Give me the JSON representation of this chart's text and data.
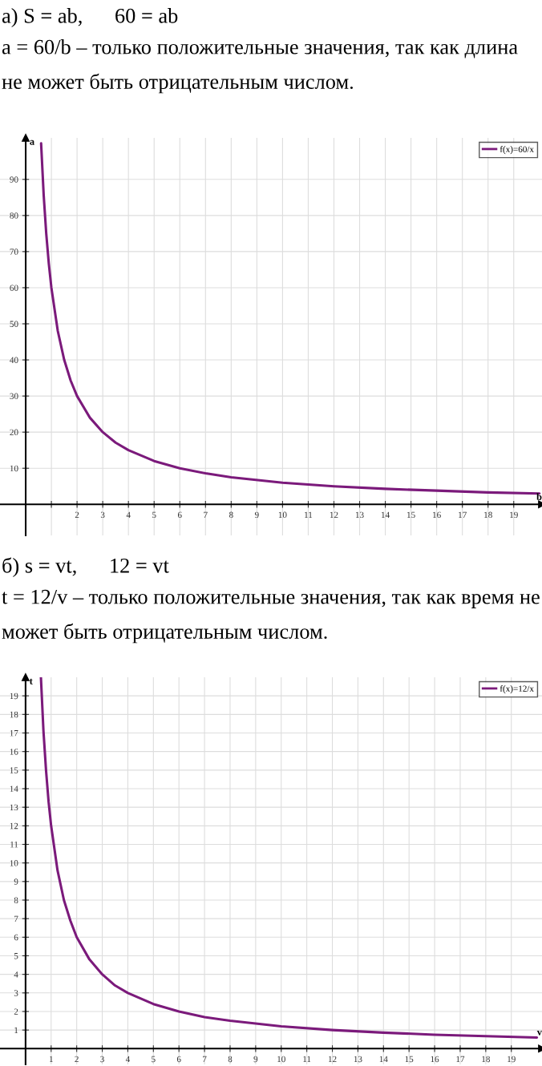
{
  "chart_data": [
    {
      "type": "line",
      "title": "а) S = ab,      60 = ab",
      "annotations": [
        "a = 60/b – только положительные значения, так как длина не может быть отрицательным числом."
      ],
      "xlabel": "b",
      "ylabel": "a",
      "x": [
        0.6,
        0.7,
        0.8,
        0.9,
        1,
        1.25,
        1.5,
        1.75,
        2,
        2.5,
        3,
        3.5,
        4,
        5,
        6,
        7,
        8,
        10,
        12,
        14,
        16,
        18,
        20
      ],
      "series": [
        {
          "name": "f(x)=60/x",
          "color": "#7b1a7b",
          "values": [
            100,
            85.7,
            75,
            66.7,
            60,
            48,
            40,
            34.3,
            30,
            24,
            20,
            17.1,
            15,
            12,
            10,
            8.6,
            7.5,
            6,
            5,
            4.3,
            3.8,
            3.3,
            3
          ]
        }
      ],
      "xlim": [
        -1,
        20.1
      ],
      "ylim": [
        -8.6,
        101.5
      ],
      "xticks": [
        {
          "value": 1,
          "label": null
        },
        2,
        3,
        4,
        5,
        6,
        7,
        8,
        9,
        10,
        11,
        12,
        13,
        14,
        15,
        16,
        17,
        18,
        19
      ],
      "yticks": [
        10,
        20,
        30,
        40,
        50,
        60,
        70,
        80,
        90
      ],
      "grid": true,
      "legend": "top right",
      "marker": "none",
      "line_style": "solid"
    },
    {
      "type": "line",
      "title": "б) s = vt,      12 = vt",
      "annotations": [
        "t = 12/v – только положительные значения, так как время не может быть отрицательным числом."
      ],
      "xlabel": "v",
      "ylabel": "t",
      "x": [
        0.6,
        0.7,
        0.8,
        0.9,
        1,
        1.25,
        1.5,
        1.75,
        2,
        2.5,
        3,
        3.5,
        4,
        5,
        6,
        7,
        8,
        10,
        12,
        14,
        16,
        18,
        20
      ],
      "series": [
        {
          "name": "f(x)=12/x",
          "color": "#7b1a7b",
          "values": [
            20,
            17.1,
            15,
            13.3,
            12,
            9.6,
            8,
            6.9,
            6,
            4.8,
            4,
            3.4,
            3,
            2.4,
            2,
            1.7,
            1.5,
            1.2,
            1,
            0.86,
            0.75,
            0.67,
            0.6
          ]
        }
      ],
      "xlim": [
        -1,
        20.2
      ],
      "ylim": [
        -0.85,
        20
      ],
      "xticks": [
        1,
        2,
        3,
        4,
        5,
        6,
        7,
        8,
        9,
        10,
        11,
        12,
        13,
        14,
        15,
        16,
        17,
        18,
        19
      ],
      "yticks": [
        1,
        2,
        3,
        4,
        5,
        6,
        7,
        8,
        9,
        10,
        11,
        12,
        13,
        14,
        15,
        16,
        17,
        18,
        19
      ],
      "grid": true,
      "legend": "top right",
      "marker": "none",
      "line_style": "solid"
    }
  ]
}
